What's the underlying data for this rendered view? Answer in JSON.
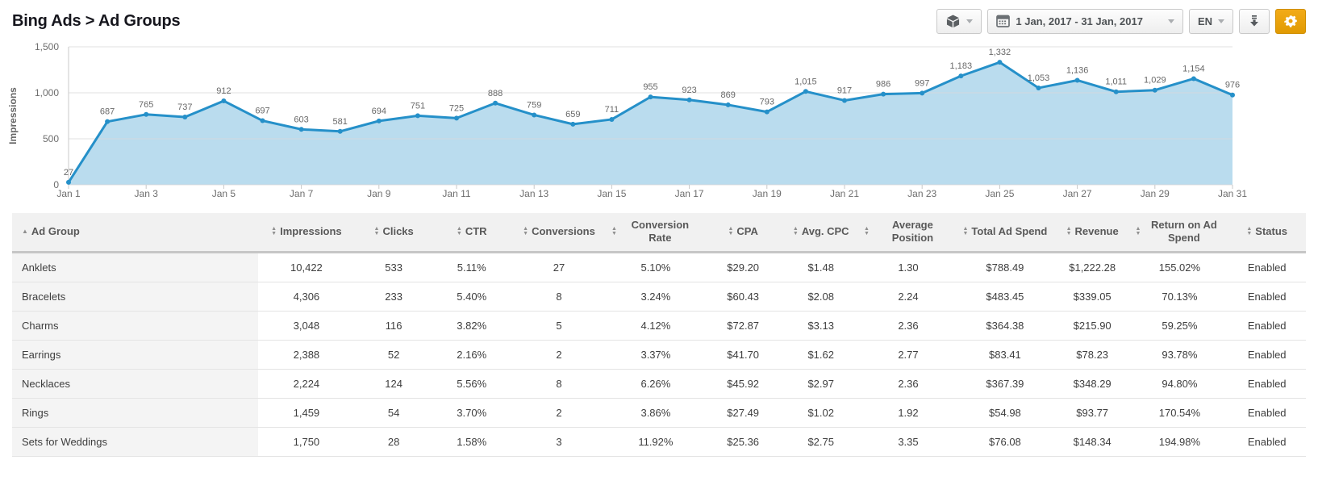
{
  "header": {
    "title": "Bing Ads > Ad Groups"
  },
  "toolbar": {
    "widget_button": {
      "icon": "cube-icon"
    },
    "date_range": "1 Jan, 2017 - 31 Jan, 2017",
    "language": "EN",
    "download_icon": "download-icon",
    "settings_icon": "gear-icon",
    "settings_color": "#e8a00c"
  },
  "chart_data": {
    "type": "area",
    "title": "",
    "xlabel": "",
    "ylabel": "Impressions",
    "x": [
      "Jan 1",
      "Jan 2",
      "Jan 3",
      "Jan 4",
      "Jan 5",
      "Jan 6",
      "Jan 7",
      "Jan 8",
      "Jan 9",
      "Jan 10",
      "Jan 11",
      "Jan 12",
      "Jan 13",
      "Jan 14",
      "Jan 15",
      "Jan 16",
      "Jan 17",
      "Jan 18",
      "Jan 19",
      "Jan 20",
      "Jan 21",
      "Jan 22",
      "Jan 23",
      "Jan 24",
      "Jan 25",
      "Jan 26",
      "Jan 27",
      "Jan 28",
      "Jan 29",
      "Jan 30",
      "Jan 31"
    ],
    "values": [
      27,
      687,
      765,
      737,
      912,
      697,
      603,
      581,
      694,
      751,
      725,
      888,
      759,
      659,
      711,
      955,
      923,
      869,
      793,
      1015,
      917,
      986,
      997,
      1183,
      1332,
      1053,
      1136,
      1011,
      1029,
      1154,
      976
    ],
    "ylim": [
      0,
      1500
    ],
    "yticks": [
      0,
      500,
      1000,
      1500
    ],
    "x_label_every": 2,
    "grid": "horizontal",
    "legend_position": "none",
    "data_labels": true,
    "line_color": "#2590c9",
    "fill_color": "#badcee",
    "label_color": "#6e6e6e",
    "axis_color": "#c9c9c9"
  },
  "table": {
    "columns": [
      {
        "label": "Ad Group",
        "sort": "asc"
      },
      {
        "label": "Impressions",
        "sort": "both"
      },
      {
        "label": "Clicks",
        "sort": "both"
      },
      {
        "label": "CTR",
        "sort": "both"
      },
      {
        "label": "Conversions",
        "sort": "both"
      },
      {
        "label": "Conversion Rate",
        "sort": "both"
      },
      {
        "label": "CPA",
        "sort": "both"
      },
      {
        "label": "Avg. CPC",
        "sort": "both"
      },
      {
        "label": "Average Position",
        "sort": "both"
      },
      {
        "label": "Total Ad Spend",
        "sort": "both"
      },
      {
        "label": "Revenue",
        "sort": "both"
      },
      {
        "label": "Return on Ad Spend",
        "sort": "both"
      },
      {
        "label": "Status",
        "sort": "both"
      }
    ],
    "rows": [
      [
        "Anklets",
        "10,422",
        "533",
        "5.11%",
        "27",
        "5.10%",
        "$29.20",
        "$1.48",
        "1.30",
        "$788.49",
        "$1,222.28",
        "155.02%",
        "Enabled"
      ],
      [
        "Bracelets",
        "4,306",
        "233",
        "5.40%",
        "8",
        "3.24%",
        "$60.43",
        "$2.08",
        "2.24",
        "$483.45",
        "$339.05",
        "70.13%",
        "Enabled"
      ],
      [
        "Charms",
        "3,048",
        "116",
        "3.82%",
        "5",
        "4.12%",
        "$72.87",
        "$3.13",
        "2.36",
        "$364.38",
        "$215.90",
        "59.25%",
        "Enabled"
      ],
      [
        "Earrings",
        "2,388",
        "52",
        "2.16%",
        "2",
        "3.37%",
        "$41.70",
        "$1.62",
        "2.77",
        "$83.41",
        "$78.23",
        "93.78%",
        "Enabled"
      ],
      [
        "Necklaces",
        "2,224",
        "124",
        "5.56%",
        "8",
        "6.26%",
        "$45.92",
        "$2.97",
        "2.36",
        "$367.39",
        "$348.29",
        "94.80%",
        "Enabled"
      ],
      [
        "Rings",
        "1,459",
        "54",
        "3.70%",
        "2",
        "3.86%",
        "$27.49",
        "$1.02",
        "1.92",
        "$54.98",
        "$93.77",
        "170.54%",
        "Enabled"
      ],
      [
        "Sets for Weddings",
        "1,750",
        "28",
        "1.58%",
        "3",
        "11.92%",
        "$25.36",
        "$2.75",
        "3.35",
        "$76.08",
        "$148.34",
        "194.98%",
        "Enabled"
      ]
    ]
  }
}
